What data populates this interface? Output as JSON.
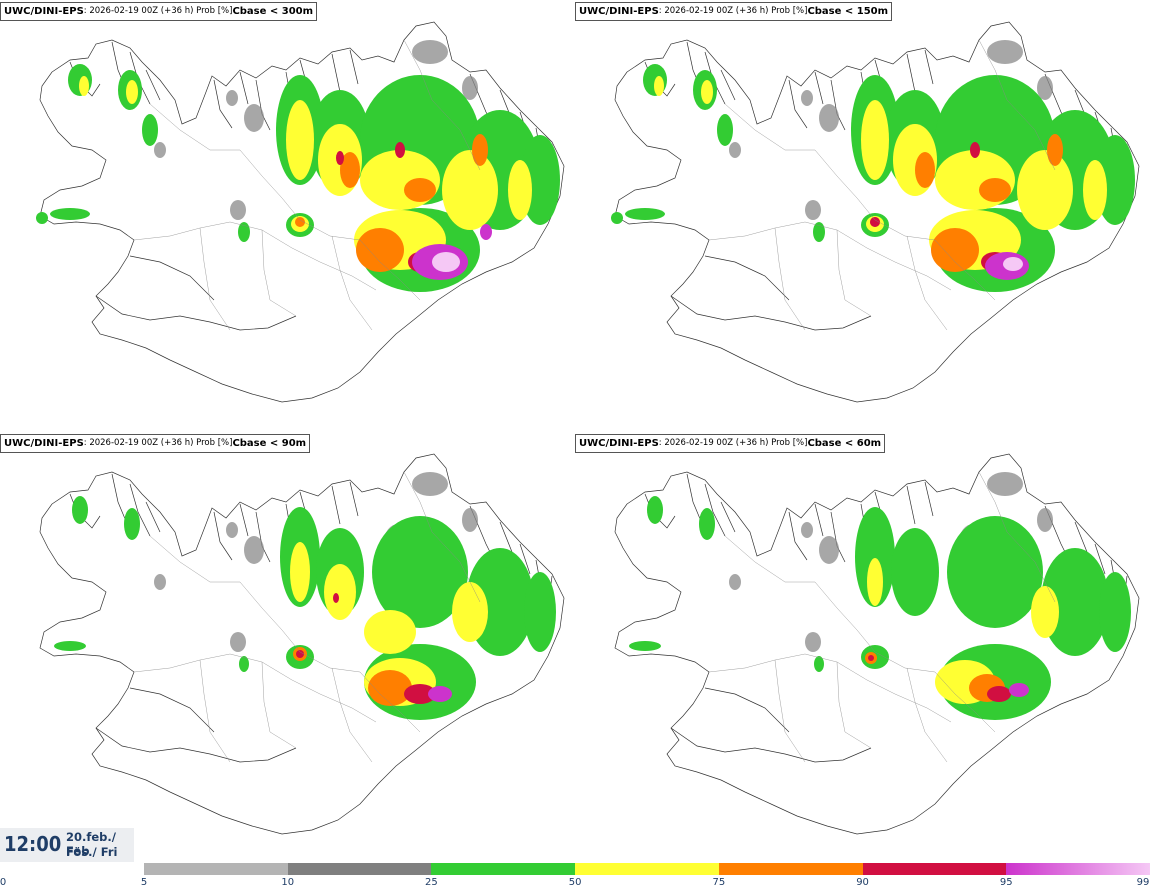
{
  "panels": [
    {
      "model": "UWC/DINI-EPS",
      "run": ": 2026-02-19 00Z (+36 h) Prob [%] ",
      "variable": "Cbase < 300m"
    },
    {
      "model": "UWC/DINI-EPS",
      "run": ": 2026-02-19 00Z (+36 h) Prob [%] ",
      "variable": "Cbase < 150m"
    },
    {
      "model": "UWC/DINI-EPS",
      "run": ": 2026-02-19 00Z (+36 h) Prob [%] ",
      "variable": "Cbase < 90m"
    },
    {
      "model": "UWC/DINI-EPS",
      "run": ": 2026-02-19 00Z (+36 h) Prob [%] ",
      "variable": "Cbase < 60m"
    }
  ],
  "valid_time": {
    "time": "12:00",
    "date_line1": "20.feb./ Feb",
    "date_line2": "Fös./ Fri"
  },
  "colorbar": {
    "ticks": [
      "0",
      "5",
      "10",
      "25",
      "50",
      "75",
      "90",
      "95",
      "99"
    ],
    "colors": [
      "#b4b4b4",
      "#7f7f7f",
      "#33cc33",
      "#ffff33",
      "#ff7f00",
      "#d10f41",
      "#cc33cc",
      "#f5c8f5"
    ]
  }
}
